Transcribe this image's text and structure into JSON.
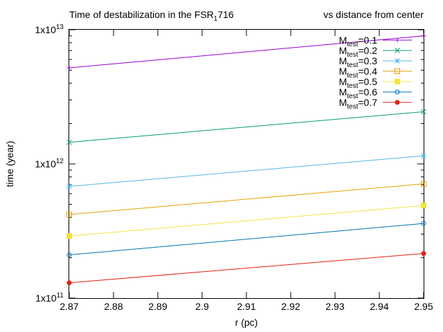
{
  "chart_data": {
    "type": "line",
    "title": {
      "prefix": "Time of destabilization in the FSR",
      "subscript": "1",
      "suffix": "716",
      "right": "vs distance from center"
    },
    "xlabel": "r (pc)",
    "ylabel": "time (year)",
    "xlim": [
      2.87,
      2.95
    ],
    "ylim": [
      100000000000.0,
      10000000000000.0
    ],
    "yscale": "log",
    "grid": false,
    "legend_position": "top-right",
    "x_ticks": [
      2.87,
      2.88,
      2.89,
      2.9,
      2.91,
      2.92,
      2.93,
      2.94,
      2.95
    ],
    "x_tick_labels": [
      "2.87",
      "2.88",
      "2.89",
      "2.9",
      "2.91",
      "2.92",
      "2.93",
      "2.94",
      "2.95"
    ],
    "y_ticks": [
      {
        "value": 100000000000.0,
        "base": "1x10",
        "exp": "11"
      },
      {
        "value": 1000000000000.0,
        "base": "1x10",
        "exp": "12"
      },
      {
        "value": 10000000000000.0,
        "base": "1x10",
        "exp": "13"
      }
    ],
    "series": [
      {
        "name": "=0.1",
        "label_main": "M",
        "label_sub": "test",
        "label_rest": "=0.1",
        "color": "#9400d3",
        "marker": "plus",
        "x": [
          2.87,
          2.95
        ],
        "y": [
          5200000000000.0,
          9000000000000.0
        ]
      },
      {
        "name": "=0.2",
        "label_main": "M",
        "label_sub": "test",
        "label_rest": "=0.2",
        "color": "#009e73",
        "marker": "cross",
        "x": [
          2.87,
          2.95
        ],
        "y": [
          1450000000000.0,
          2450000000000.0
        ]
      },
      {
        "name": "=0.3",
        "label_main": "M",
        "label_sub": "test",
        "label_rest": "=0.3",
        "color": "#56b4e9",
        "marker": "star",
        "x": [
          2.87,
          2.95
        ],
        "y": [
          680000000000.0,
          1150000000000.0
        ]
      },
      {
        "name": "=0.4",
        "label_main": "M",
        "label_sub": "test",
        "label_rest": "=0.4",
        "color": "#e69f00",
        "marker": "open-square",
        "x": [
          2.87,
          2.95
        ],
        "y": [
          420000000000.0,
          710000000000.0
        ]
      },
      {
        "name": "=0.5",
        "label_main": "M",
        "label_sub": "test",
        "label_rest": "=0.5",
        "color": "#f0e442",
        "marker": "filled-square",
        "x": [
          2.87,
          2.95
        ],
        "y": [
          290000000000.0,
          490000000000.0
        ]
      },
      {
        "name": "=0.6",
        "label_main": "M",
        "label_sub": "test",
        "label_rest": "=0.6",
        "color": "#0072b2",
        "marker": "open-circle",
        "x": [
          2.87,
          2.95
        ],
        "y": [
          210000000000.0,
          360000000000.0
        ]
      },
      {
        "name": "=0.7",
        "label_main": "M",
        "label_sub": "test",
        "label_rest": "=0.7",
        "color": "#e51e10",
        "marker": "filled-circle",
        "x": [
          2.87,
          2.95
        ],
        "y": [
          130000000000.0,
          215000000000.0
        ]
      }
    ]
  }
}
